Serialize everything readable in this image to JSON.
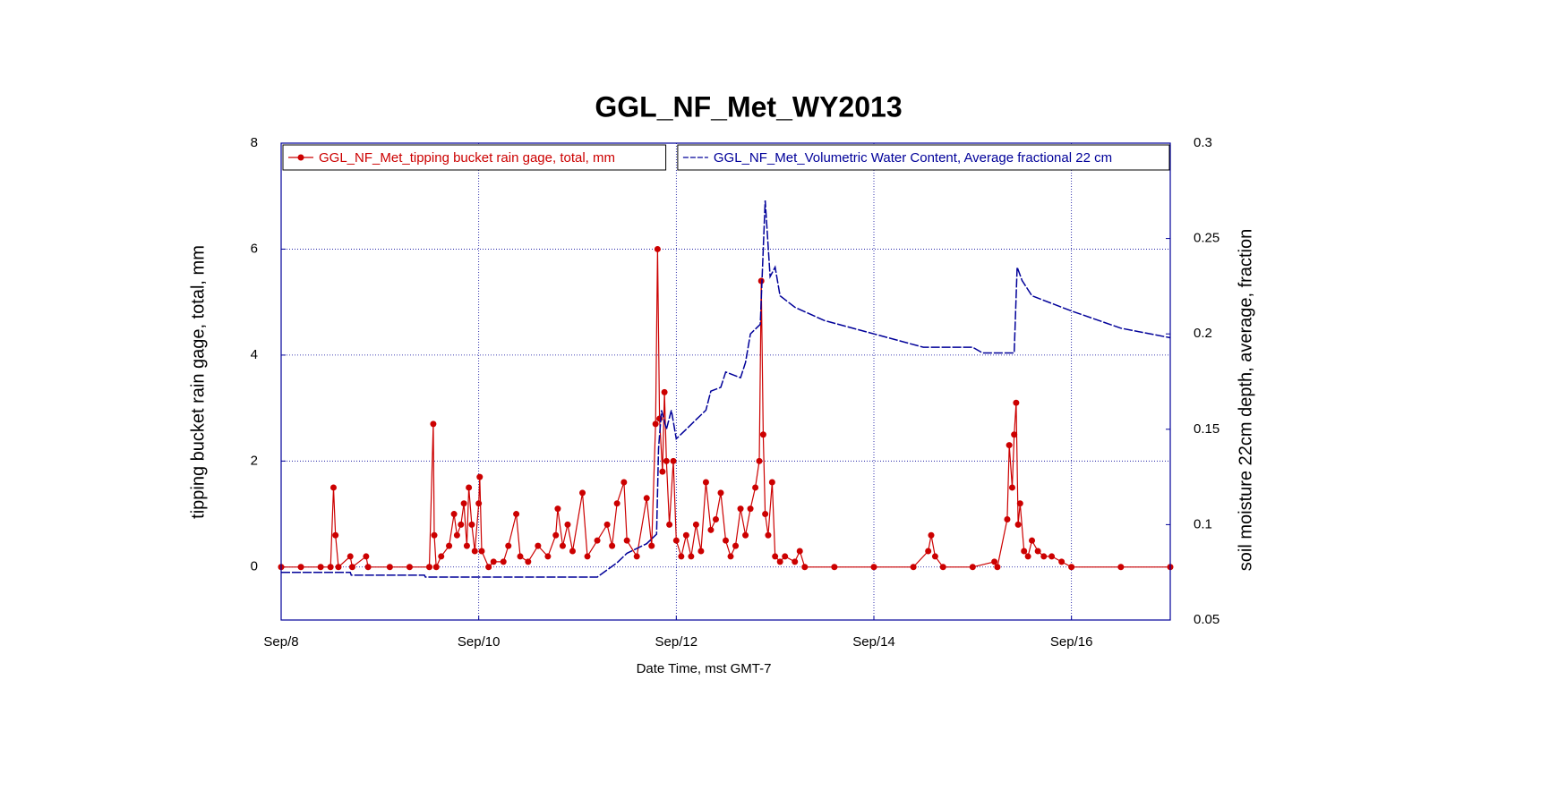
{
  "chart_data": {
    "type": "line",
    "title": "GGL_NF_Met_WY2013",
    "xlabel": "Date Time, mst GMT-7",
    "ylabel": "tipping bucket rain gage, total, mm",
    "y2label": "soil moisture 22cm depth, average, fraction",
    "xlim": [
      8,
      17
    ],
    "xticks": [
      {
        "value": 8,
        "label": "Sep/8"
      },
      {
        "value": 10,
        "label": "Sep/10"
      },
      {
        "value": 12,
        "label": "Sep/12"
      },
      {
        "value": 14,
        "label": "Sep/14"
      },
      {
        "value": 16,
        "label": "Sep/16"
      }
    ],
    "ylim": [
      -1,
      8
    ],
    "yticks": [
      0,
      2,
      4,
      6,
      8
    ],
    "y2lim": [
      0.05,
      0.3
    ],
    "y2ticks": [
      0.05,
      0.1,
      0.15,
      0.2,
      0.25,
      0.3
    ],
    "grid": true,
    "series": [
      {
        "name": "GGL_NF_Met_tipping bucket rain gage, total, mm",
        "color": "#cc0000",
        "legend": "upper left",
        "marker": true,
        "x": [
          8,
          8.2,
          8.4,
          8.5,
          8.53,
          8.55,
          8.58,
          8.7,
          8.72,
          8.86,
          8.88,
          9.1,
          9.3,
          9.5,
          9.54,
          9.55,
          9.57,
          9.62,
          9.7,
          9.75,
          9.78,
          9.82,
          9.85,
          9.88,
          9.9,
          9.93,
          9.96,
          10.0,
          10.01,
          10.03,
          10.1,
          10.15,
          10.25,
          10.3,
          10.38,
          10.42,
          10.5,
          10.6,
          10.7,
          10.78,
          10.8,
          10.85,
          10.9,
          10.95,
          11.05,
          11.1,
          11.2,
          11.3,
          11.35,
          11.4,
          11.47,
          11.5,
          11.6,
          11.7,
          11.75,
          11.79,
          11.81,
          11.83,
          11.86,
          11.88,
          11.9,
          11.93,
          11.97,
          12.0,
          12.05,
          12.1,
          12.15,
          12.2,
          12.25,
          12.3,
          12.35,
          12.4,
          12.45,
          12.5,
          12.55,
          12.6,
          12.65,
          12.7,
          12.75,
          12.8,
          12.84,
          12.86,
          12.88,
          12.9,
          12.93,
          12.97,
          13.0,
          13.05,
          13.1,
          13.2,
          13.25,
          13.3,
          13.6,
          14.0,
          14.4,
          14.55,
          14.58,
          14.62,
          14.7,
          15.0,
          15.22,
          15.25,
          15.35,
          15.37,
          15.4,
          15.42,
          15.44,
          15.46,
          15.48,
          15.52,
          15.56,
          15.6,
          15.66,
          15.72,
          15.8,
          15.9,
          16.0,
          16.5,
          17.0
        ],
        "values": [
          0,
          0,
          0,
          0,
          1.5,
          0.6,
          0,
          0.2,
          0,
          0.2,
          0,
          0,
          0,
          0,
          2.7,
          0.6,
          0,
          0.2,
          0.4,
          1.0,
          0.6,
          0.8,
          1.2,
          0.4,
          1.5,
          0.8,
          0.3,
          1.2,
          1.7,
          0.3,
          0,
          0.1,
          0.1,
          0.4,
          1.0,
          0.2,
          0.1,
          0.4,
          0.2,
          0.6,
          1.1,
          0.4,
          0.8,
          0.3,
          1.4,
          0.2,
          0.5,
          0.8,
          0.4,
          1.2,
          1.6,
          0.5,
          0.2,
          1.3,
          0.4,
          2.7,
          6.0,
          2.8,
          1.8,
          3.3,
          2.0,
          0.8,
          2.0,
          0.5,
          0.2,
          0.6,
          0.2,
          0.8,
          0.3,
          1.6,
          0.7,
          0.9,
          1.4,
          0.5,
          0.2,
          0.4,
          1.1,
          0.6,
          1.1,
          1.5,
          2.0,
          5.4,
          2.5,
          1.0,
          0.6,
          1.6,
          0.2,
          0.1,
          0.2,
          0.1,
          0.3,
          0,
          0,
          0,
          0,
          0.3,
          0.6,
          0.2,
          0,
          0,
          0.1,
          0,
          0.9,
          2.3,
          1.5,
          2.5,
          3.1,
          0.8,
          1.2,
          0.3,
          0.2,
          0.5,
          0.3,
          0.2,
          0.2,
          0.1,
          0,
          0,
          0
        ]
      },
      {
        "name": "GGL_NF_Met_Volumetric Water Content, Average fractional 22 cm",
        "color": "#000099",
        "legend": "upper right",
        "axis": "y2",
        "marker": false,
        "x": [
          8,
          8.7,
          8.71,
          9.45,
          9.46,
          11.2,
          11.4,
          11.5,
          11.7,
          11.8,
          11.82,
          11.85,
          11.9,
          11.95,
          12.0,
          12.1,
          12.2,
          12.3,
          12.35,
          12.45,
          12.5,
          12.65,
          12.7,
          12.75,
          12.85,
          12.9,
          12.95,
          13.0,
          13.05,
          13.2,
          13.5,
          14.0,
          14.5,
          15.0,
          15.1,
          15.42,
          15.45,
          15.5,
          15.6,
          16.0,
          16.5,
          17.0
        ],
        "values": [
          0.075,
          0.075,
          0.0735,
          0.0735,
          0.0725,
          0.0725,
          0.08,
          0.085,
          0.09,
          0.095,
          0.14,
          0.16,
          0.15,
          0.16,
          0.145,
          0.15,
          0.155,
          0.16,
          0.17,
          0.172,
          0.18,
          0.177,
          0.185,
          0.2,
          0.205,
          0.27,
          0.23,
          0.235,
          0.22,
          0.214,
          0.207,
          0.2,
          0.193,
          0.193,
          0.19,
          0.19,
          0.235,
          0.228,
          0.22,
          0.212,
          0.203,
          0.198
        ]
      }
    ]
  }
}
